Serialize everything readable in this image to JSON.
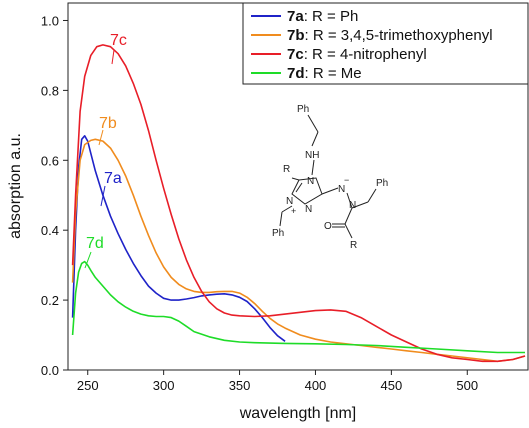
{
  "chart_data": {
    "type": "line",
    "xlabel": "wavelength [nm]",
    "ylabel": "absorption a.u.",
    "xlim": [
      237,
      540
    ],
    "ylim": [
      0.0,
      1.05
    ],
    "x_ticks": [
      250,
      300,
      350,
      400,
      450,
      500
    ],
    "y_ticks": [
      0.0,
      0.2,
      0.4,
      0.6,
      0.8,
      1.0
    ],
    "x_tick_labels": [
      "250",
      "300",
      "350",
      "400",
      "450",
      "500"
    ],
    "y_tick_labels": [
      "0.0",
      "0.2",
      "0.4",
      "0.6",
      "0.8",
      "1.0"
    ],
    "grid": false,
    "legend_position": "top-right",
    "series": [
      {
        "name": "7a",
        "legend_id": "7a",
        "legend_text": ": R = Ph",
        "curve_label": "7a",
        "color": "#1f23c8",
        "x": [
          240,
          242,
          244,
          246,
          248,
          250,
          252,
          255,
          260,
          265,
          270,
          275,
          280,
          285,
          290,
          295,
          300,
          305,
          310,
          315,
          320,
          325,
          330,
          335,
          340,
          345,
          350,
          355,
          360,
          365,
          370,
          375,
          380
        ],
        "y": [
          0.15,
          0.4,
          0.58,
          0.66,
          0.67,
          0.655,
          0.62,
          0.57,
          0.5,
          0.44,
          0.39,
          0.345,
          0.305,
          0.27,
          0.24,
          0.22,
          0.205,
          0.2,
          0.2,
          0.203,
          0.207,
          0.212,
          0.215,
          0.217,
          0.218,
          0.215,
          0.208,
          0.196,
          0.175,
          0.15,
          0.122,
          0.098,
          0.082
        ]
      },
      {
        "name": "7b",
        "legend_id": "7b",
        "legend_text": ": R = 3,4,5-trimethoxyphenyl",
        "curve_label": "7b",
        "color": "#f08c1e",
        "x": [
          240,
          242,
          245,
          248,
          252,
          255,
          260,
          265,
          270,
          275,
          280,
          285,
          290,
          295,
          300,
          305,
          310,
          315,
          320,
          325,
          330,
          335,
          340,
          345,
          350,
          355,
          360,
          365,
          370,
          375,
          380,
          390,
          400,
          410,
          420,
          430,
          440,
          450,
          460,
          470,
          480,
          490,
          500,
          510,
          520,
          530,
          538
        ],
        "y": [
          0.25,
          0.45,
          0.6,
          0.645,
          0.657,
          0.66,
          0.655,
          0.635,
          0.6,
          0.555,
          0.5,
          0.44,
          0.385,
          0.335,
          0.295,
          0.265,
          0.245,
          0.232,
          0.225,
          0.222,
          0.222,
          0.224,
          0.225,
          0.225,
          0.22,
          0.208,
          0.19,
          0.168,
          0.148,
          0.132,
          0.12,
          0.1,
          0.088,
          0.08,
          0.075,
          0.07,
          0.065,
          0.06,
          0.055,
          0.05,
          0.045,
          0.04,
          0.035,
          0.03,
          0.025,
          0.03,
          0.04
        ]
      },
      {
        "name": "7c",
        "legend_id": "7c",
        "legend_text": ": R = 4-nitrophenyl",
        "curve_label": "7c",
        "color": "#e81e28",
        "x": [
          240,
          242,
          245,
          248,
          252,
          256,
          260,
          265,
          270,
          275,
          280,
          285,
          290,
          295,
          300,
          305,
          310,
          315,
          320,
          325,
          330,
          335,
          340,
          345,
          350,
          360,
          370,
          380,
          390,
          400,
          410,
          420,
          430,
          440,
          450,
          460,
          470,
          480,
          490,
          500,
          510,
          520,
          530,
          538
        ],
        "y": [
          0.3,
          0.5,
          0.74,
          0.84,
          0.9,
          0.925,
          0.93,
          0.925,
          0.905,
          0.87,
          0.82,
          0.76,
          0.685,
          0.6,
          0.52,
          0.445,
          0.375,
          0.315,
          0.265,
          0.225,
          0.195,
          0.175,
          0.163,
          0.157,
          0.155,
          0.153,
          0.155,
          0.16,
          0.165,
          0.17,
          0.172,
          0.168,
          0.15,
          0.125,
          0.1,
          0.08,
          0.06,
          0.045,
          0.035,
          0.03,
          0.025,
          0.025,
          0.03,
          0.04
        ]
      },
      {
        "name": "7d",
        "legend_id": "7d",
        "legend_text": ": R = Me",
        "curve_label": "7d",
        "color": "#1edc28",
        "x": [
          240,
          242,
          244,
          246,
          248,
          250,
          252,
          255,
          260,
          265,
          270,
          275,
          280,
          285,
          290,
          295,
          300,
          305,
          310,
          315,
          320,
          330,
          340,
          350,
          360,
          370,
          380,
          400,
          420,
          440,
          460,
          480,
          500,
          520,
          538
        ],
        "y": [
          0.1,
          0.22,
          0.28,
          0.305,
          0.31,
          0.3,
          0.285,
          0.265,
          0.24,
          0.215,
          0.195,
          0.18,
          0.168,
          0.16,
          0.155,
          0.153,
          0.153,
          0.15,
          0.14,
          0.125,
          0.11,
          0.095,
          0.085,
          0.08,
          0.078,
          0.077,
          0.076,
          0.075,
          0.073,
          0.07,
          0.065,
          0.06,
          0.055,
          0.05,
          0.05
        ]
      }
    ],
    "inset_structure": {
      "atom_labels": [
        "NH",
        "R",
        "N",
        "N",
        "N",
        "N",
        "N",
        "Ph",
        "Ph",
        "Ph",
        "O",
        "R",
        "+",
        "−"
      ]
    }
  }
}
